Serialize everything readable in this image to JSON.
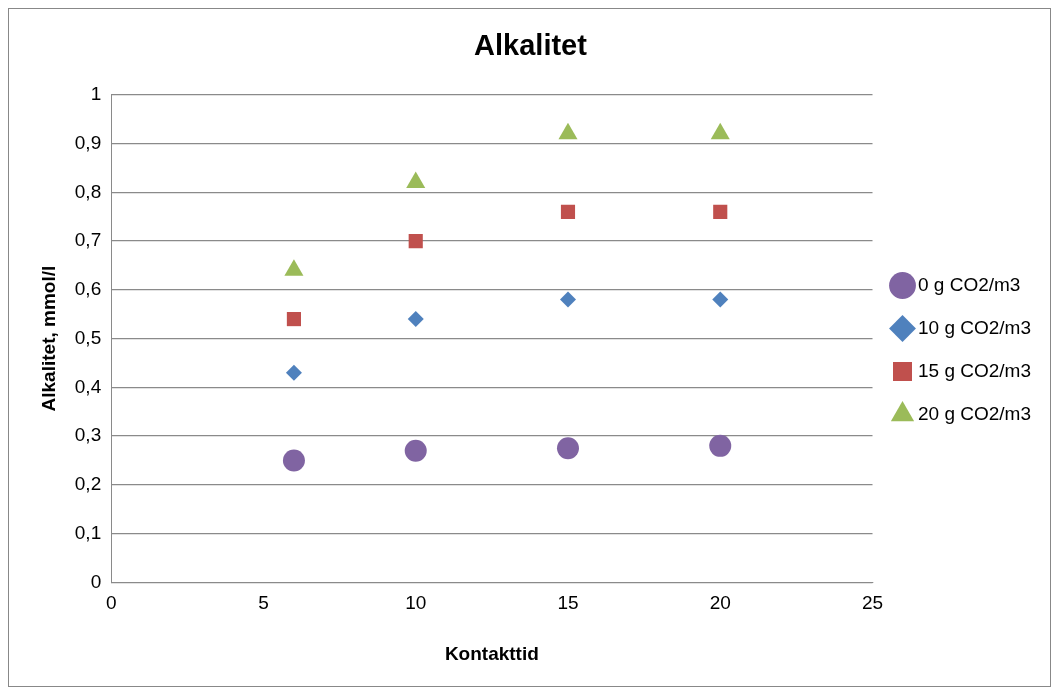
{
  "chart_data": {
    "type": "scatter",
    "title": "Alkalitet",
    "xlabel": "Kontakttid",
    "ylabel": "Alkalitet, mmol/l",
    "x": [
      6,
      10,
      15,
      20
    ],
    "series": [
      {
        "name": "0 g CO2/m3",
        "color": "#8064a2",
        "marker": "circle",
        "values": [
          0.25,
          0.27,
          0.275,
          0.28
        ]
      },
      {
        "name": "10 g CO2/m3",
        "color": "#4f81bd",
        "marker": "diamond",
        "values": [
          0.43,
          0.54,
          0.58,
          0.58
        ]
      },
      {
        "name": "15 g CO2/m3",
        "color": "#c0504d",
        "marker": "square",
        "values": [
          0.54,
          0.7,
          0.76,
          0.76
        ]
      },
      {
        "name": "20 g CO2/m3",
        "color": "#9bbb59",
        "marker": "triangle",
        "values": [
          0.64,
          0.82,
          0.92,
          0.92
        ]
      }
    ],
    "xlim": [
      0,
      25
    ],
    "xticks": [
      0,
      5,
      10,
      15,
      20,
      25
    ],
    "ylim": [
      0,
      1
    ],
    "yticks": [
      0,
      {
        "value": 0.1,
        "label": "0,1"
      },
      {
        "value": 0.2,
        "label": "0,2"
      },
      {
        "value": 0.3,
        "label": "0,3"
      },
      {
        "value": 0.4,
        "label": "0,4"
      },
      {
        "value": 0.5,
        "label": "0,5"
      },
      {
        "value": 0.6,
        "label": "0,6"
      },
      {
        "value": 0.7,
        "label": "0,7"
      },
      {
        "value": 0.8,
        "label": "0,8"
      },
      {
        "value": 0.9,
        "label": "0,9"
      },
      1
    ],
    "grid": "y",
    "legend": "right"
  }
}
